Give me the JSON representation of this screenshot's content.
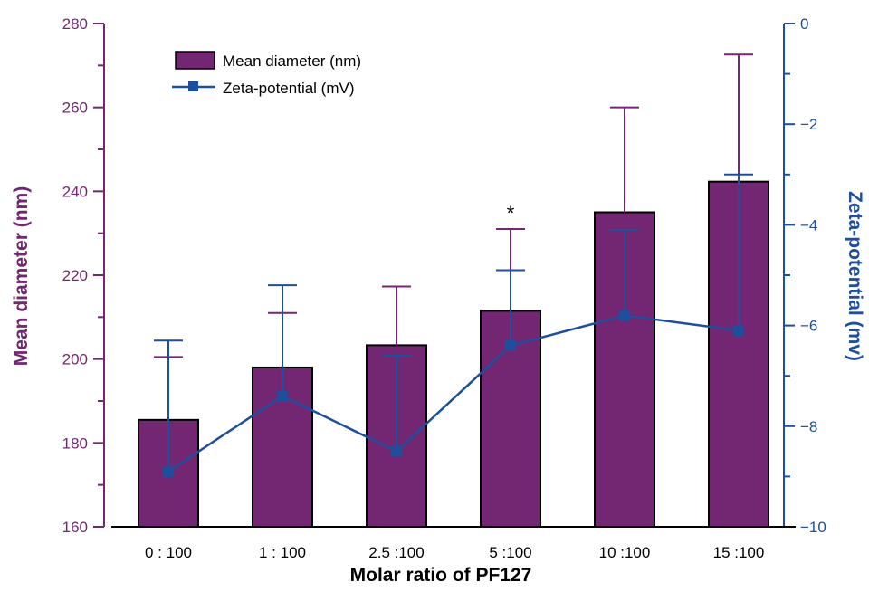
{
  "chart_data": {
    "type": "bar",
    "categories": [
      "0 : 100",
      "1 : 100",
      "2.5 :100",
      "5 :100",
      "10 :100",
      "15 :100"
    ],
    "xlabel": "Molar ratio of PF127",
    "ylabel_left": "Mean diameter (nm)",
    "ylabel_right": "Zeta-potential (mv)",
    "ylim_left": [
      160,
      280
    ],
    "ylim_right": [
      -10,
      0
    ],
    "yticks_left": [
      160,
      180,
      200,
      220,
      240,
      260,
      280
    ],
    "yticks_right": [
      -10,
      -8,
      -6,
      -4,
      -2,
      0
    ],
    "yticks_right_labels": [
      "−10",
      "−8",
      "−6",
      "−4",
      "−2",
      "0"
    ],
    "grid": false,
    "legend_position": "top-left",
    "series": [
      {
        "name": "Mean diameter (nm)",
        "type": "bar",
        "axis": "left",
        "values": [
          185.5,
          198,
          203.3,
          211.5,
          235,
          242.3
        ],
        "error_upper": [
          15,
          13,
          14,
          19.5,
          25,
          30.3
        ]
      },
      {
        "name": "Zeta-potential (mV)",
        "type": "line",
        "axis": "right",
        "values": [
          -8.9,
          -7.4,
          -8.5,
          -6.4,
          -5.8,
          -6.1
        ],
        "error_upper": [
          2.6,
          2.2,
          1.9,
          1.5,
          1.7,
          3.1
        ]
      }
    ],
    "annotations": [
      {
        "category_index": 3,
        "text": "*"
      }
    ]
  },
  "colors": {
    "bar_fill": "#732672",
    "bar_edge": "#000000",
    "left_axis": "#732672",
    "right_axis": "#1f4e9c",
    "line": "#1f4e9c",
    "bar_error": "#732672"
  }
}
